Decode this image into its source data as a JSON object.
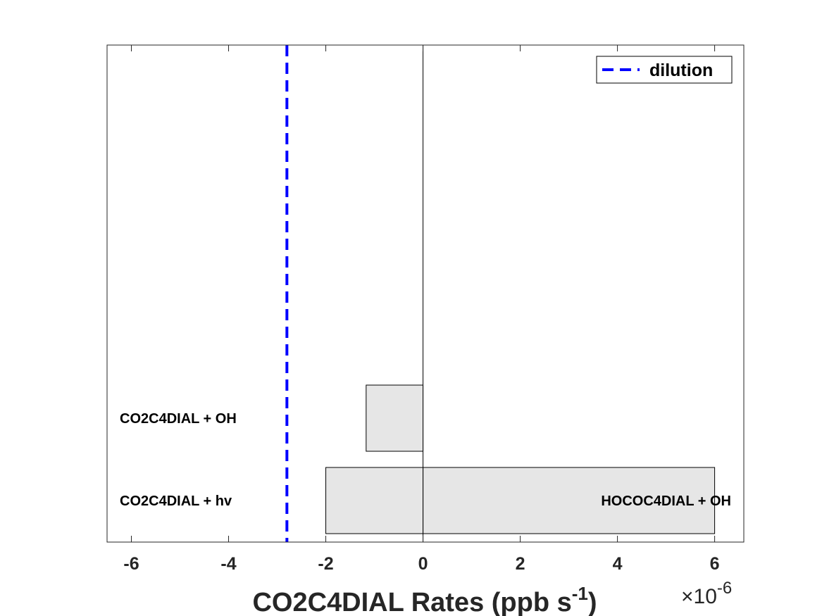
{
  "chart_data": {
    "type": "bar",
    "orientation": "horizontal",
    "stacked": true,
    "xlabel": "CO2C4DIAL Rates (ppb s-1)",
    "xlabel_main": "CO2C4DIAL Rates (ppb s",
    "xlabel_sup": "-1",
    "xlabel_close": ")",
    "x_scale_exponent": -6,
    "x_scale_label": "×10",
    "x_scale_sup": "-6",
    "xlim": [
      -6.5,
      6.6
    ],
    "xticks": [
      -6,
      -4,
      -2,
      0,
      2,
      4,
      6
    ],
    "xtick_labels": [
      "-6",
      "-4",
      "-2",
      "0",
      "2",
      "4",
      "6"
    ],
    "categories": [
      "CO2C4DIAL + hv",
      "CO2C4DIAL + OH"
    ],
    "bars": [
      {
        "category": "CO2C4DIAL + hv",
        "start": -2.0,
        "end": 0,
        "label": "CO2C4DIAL + hv",
        "label_side": "left"
      },
      {
        "category": "CO2C4DIAL + OH",
        "start": -1.17,
        "end": 0,
        "label": "CO2C4DIAL + OH",
        "label_side": "left"
      },
      {
        "category": "CO2C4DIAL + hv",
        "start": 0,
        "end": 6.0,
        "label": "HOCOC4DIAL + OH",
        "label_side": "right"
      }
    ],
    "reference_lines": [
      {
        "name": "dilution",
        "x": -2.8,
        "style": "dashed",
        "color": "#0000ff"
      }
    ],
    "legend": {
      "entries": [
        "dilution"
      ],
      "placement": "top-right"
    },
    "bar_color": "#e6e6e6",
    "grid": false
  }
}
